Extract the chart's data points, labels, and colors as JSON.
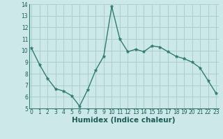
{
  "x": [
    0,
    1,
    2,
    3,
    4,
    5,
    6,
    7,
    8,
    9,
    10,
    11,
    12,
    13,
    14,
    15,
    16,
    17,
    18,
    19,
    20,
    21,
    22,
    23
  ],
  "y": [
    10.2,
    8.8,
    7.6,
    6.7,
    6.5,
    6.1,
    5.2,
    6.6,
    8.3,
    9.5,
    13.8,
    11.0,
    9.9,
    10.1,
    9.9,
    10.4,
    10.3,
    9.9,
    9.5,
    9.3,
    9.0,
    8.5,
    7.4,
    6.3
  ],
  "xlabel": "Humidex (Indice chaleur)",
  "ylim": [
    5,
    14
  ],
  "xlim": [
    -0.3,
    23.3
  ],
  "yticks": [
    5,
    6,
    7,
    8,
    9,
    10,
    11,
    12,
    13,
    14
  ],
  "xticks": [
    0,
    1,
    2,
    3,
    4,
    5,
    6,
    7,
    8,
    9,
    10,
    11,
    12,
    13,
    14,
    15,
    16,
    17,
    18,
    19,
    20,
    21,
    22,
    23
  ],
  "line_color": "#2e7d72",
  "marker_color": "#2e7d72",
  "bg_color": "#cce8e8",
  "grid_color": "#aacece",
  "label_color": "#1a5c55",
  "tick_fontsize": 5.5,
  "xlabel_fontsize": 7.5,
  "linewidth": 1.0,
  "markersize": 3.5
}
